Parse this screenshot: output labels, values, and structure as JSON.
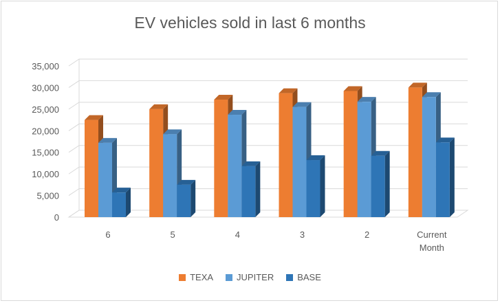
{
  "chart_data": {
    "type": "bar",
    "title": "EV vehicles sold in last 6 months",
    "categories": [
      "6",
      "5",
      "4",
      "3",
      "2",
      "Current Month"
    ],
    "series": [
      {
        "name": "TEXA",
        "color": "#ED7D31",
        "values": [
          22500,
          25000,
          27200,
          28700,
          29200,
          30000
        ]
      },
      {
        "name": "JUPITER",
        "color": "#5B9BD5",
        "values": [
          17200,
          19200,
          23700,
          25500,
          26700,
          27800
        ]
      },
      {
        "name": "BASE",
        "color": "#2E75B6",
        "values": [
          5700,
          7500,
          11800,
          13200,
          14200,
          17300
        ]
      }
    ],
    "ylim": [
      0,
      35000
    ],
    "yticks": [
      "0",
      "5,000",
      "10,000",
      "15,000",
      "20,000",
      "25,000",
      "30,000",
      "35,000"
    ],
    "grid": true,
    "legend_position": "bottom"
  }
}
